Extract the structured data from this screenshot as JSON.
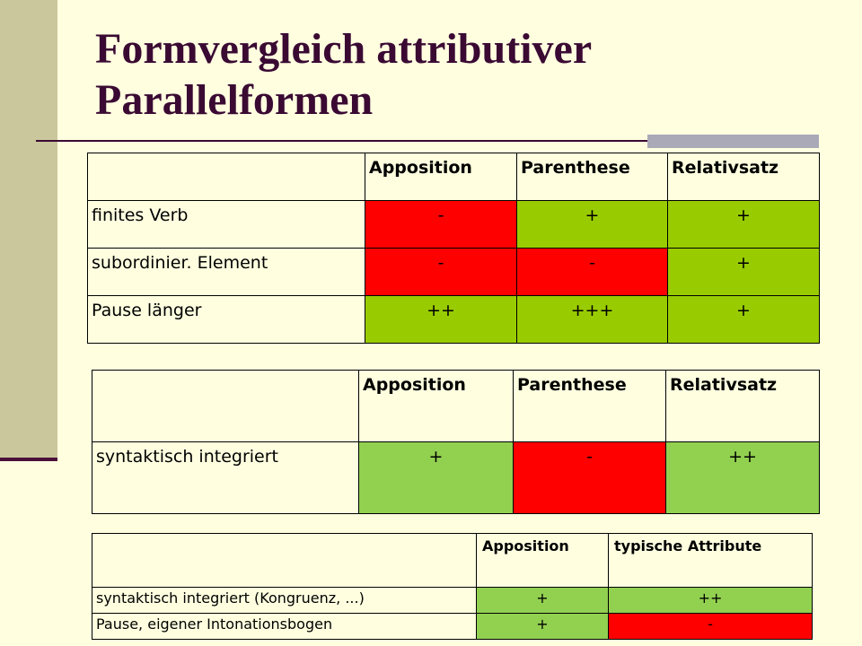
{
  "slide": {
    "title_line1": "Formvergleich attributiver",
    "title_line2": "Parallelformen"
  },
  "colors": {
    "background": "#ffffe0",
    "sidebar": "#cbc79c",
    "title": "#3a0a33",
    "red": "#ff0000",
    "green_dark": "#99cc00",
    "green_light": "#92d050"
  },
  "table1": {
    "headers": [
      "",
      "Apposition",
      "Parenthese",
      "Relativsatz"
    ],
    "rows": [
      {
        "label": "finites Verb",
        "cells": [
          "-",
          "+",
          "+"
        ],
        "colors": [
          "red",
          "green",
          "green"
        ]
      },
      {
        "label": "subordinier. Element",
        "cells": [
          "-",
          "-",
          "+"
        ],
        "colors": [
          "red",
          "red",
          "green"
        ]
      },
      {
        "label": "Pause länger",
        "cells": [
          "++",
          "+++",
          "+"
        ],
        "colors": [
          "green",
          "green",
          "green"
        ]
      }
    ]
  },
  "table2": {
    "headers": [
      "",
      "Apposition",
      "Parenthese",
      "Relativsatz"
    ],
    "rows": [
      {
        "label": "syntaktisch integriert",
        "cells": [
          "+",
          "-",
          "++"
        ],
        "colors": [
          "green",
          "red",
          "green"
        ]
      }
    ]
  },
  "table3": {
    "headers": [
      "",
      "Apposition",
      "typische Attribute"
    ],
    "rows": [
      {
        "label": "syntaktisch integriert (Kongruenz, ...)",
        "cells": [
          "+",
          "++"
        ],
        "colors": [
          "green",
          "green"
        ]
      },
      {
        "label": "Pause, eigener Intonationsbogen",
        "cells": [
          "+",
          "-"
        ],
        "colors": [
          "green",
          "red"
        ]
      }
    ]
  }
}
